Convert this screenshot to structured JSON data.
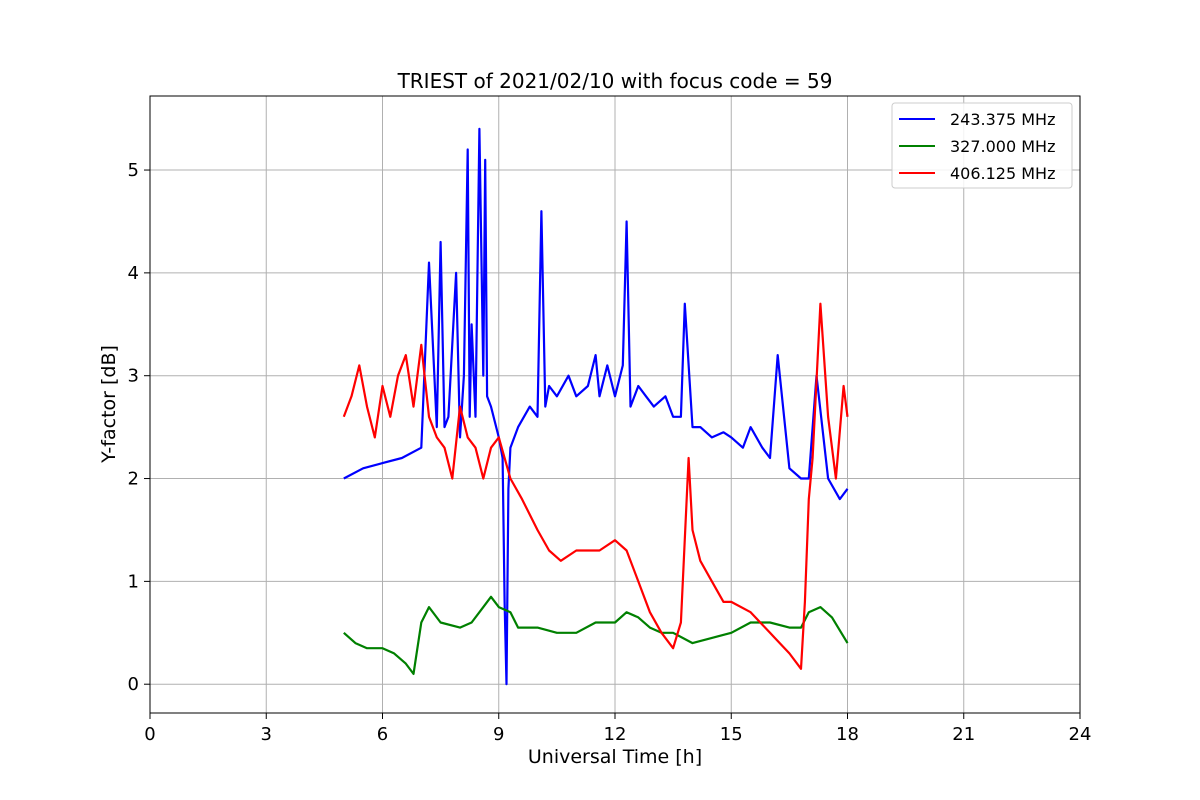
{
  "chart_data": {
    "type": "line",
    "title": "TRIEST of 2021/02/10 with focus code = 59",
    "xlabel": "Universal Time [h]",
    "ylabel": "Y-factor [dB]",
    "xlim": [
      0,
      24
    ],
    "ylim": [
      -0.28,
      5.72
    ],
    "xticks": [
      0,
      3,
      6,
      9,
      12,
      15,
      18,
      21,
      24
    ],
    "yticks": [
      0,
      1,
      2,
      3,
      4,
      5
    ],
    "grid": true,
    "legend_position": "top-right",
    "series": [
      {
        "name": "243.375 MHz",
        "color": "#0000ff",
        "x": [
          5.0,
          5.5,
          6.0,
          6.5,
          7.0,
          7.2,
          7.4,
          7.5,
          7.6,
          7.7,
          7.9,
          8.0,
          8.1,
          8.2,
          8.25,
          8.3,
          8.4,
          8.5,
          8.6,
          8.65,
          8.7,
          8.8,
          9.0,
          9.1,
          9.15,
          9.2,
          9.25,
          9.3,
          9.5,
          9.8,
          10.0,
          10.1,
          10.2,
          10.3,
          10.5,
          10.8,
          11.0,
          11.3,
          11.5,
          11.6,
          11.8,
          12.0,
          12.2,
          12.3,
          12.4,
          12.6,
          12.8,
          13.0,
          13.3,
          13.5,
          13.7,
          13.8,
          14.0,
          14.2,
          14.5,
          14.8,
          15.0,
          15.3,
          15.5,
          15.8,
          16.0,
          16.2,
          16.5,
          16.8,
          17.0,
          17.2,
          17.5,
          17.8,
          18.0
        ],
        "y": [
          2.0,
          2.1,
          2.15,
          2.2,
          2.3,
          4.1,
          2.5,
          4.3,
          2.5,
          2.6,
          4.0,
          2.4,
          3.0,
          5.2,
          2.6,
          3.5,
          2.6,
          5.4,
          3.0,
          5.1,
          2.8,
          2.7,
          2.4,
          2.2,
          0.8,
          0.0,
          1.9,
          2.3,
          2.5,
          2.7,
          2.6,
          4.6,
          2.7,
          2.9,
          2.8,
          3.0,
          2.8,
          2.9,
          3.2,
          2.8,
          3.1,
          2.8,
          3.1,
          4.5,
          2.7,
          2.9,
          2.8,
          2.7,
          2.8,
          2.6,
          2.6,
          3.7,
          2.5,
          2.5,
          2.4,
          2.45,
          2.4,
          2.3,
          2.5,
          2.3,
          2.2,
          3.2,
          2.1,
          2.0,
          2.0,
          3.0,
          2.0,
          1.8,
          1.9
        ]
      },
      {
        "name": "327.000 MHz",
        "color": "#008000",
        "x": [
          5.0,
          5.3,
          5.6,
          6.0,
          6.3,
          6.6,
          6.8,
          7.0,
          7.2,
          7.5,
          8.0,
          8.3,
          8.6,
          8.8,
          9.0,
          9.3,
          9.5,
          10.0,
          10.5,
          11.0,
          11.5,
          12.0,
          12.3,
          12.6,
          12.9,
          13.2,
          13.5,
          14.0,
          14.5,
          15.0,
          15.5,
          16.0,
          16.5,
          16.8,
          17.0,
          17.3,
          17.6,
          18.0
        ],
        "y": [
          0.5,
          0.4,
          0.35,
          0.35,
          0.3,
          0.2,
          0.1,
          0.6,
          0.75,
          0.6,
          0.55,
          0.6,
          0.75,
          0.85,
          0.75,
          0.7,
          0.55,
          0.55,
          0.5,
          0.5,
          0.6,
          0.6,
          0.7,
          0.65,
          0.55,
          0.5,
          0.5,
          0.4,
          0.45,
          0.5,
          0.6,
          0.6,
          0.55,
          0.55,
          0.7,
          0.75,
          0.65,
          0.4
        ]
      },
      {
        "name": "406.125 MHz",
        "color": "#ff0000",
        "x": [
          5.0,
          5.2,
          5.4,
          5.6,
          5.8,
          6.0,
          6.2,
          6.4,
          6.6,
          6.8,
          7.0,
          7.2,
          7.4,
          7.6,
          7.8,
          8.0,
          8.2,
          8.4,
          8.6,
          8.8,
          9.0,
          9.3,
          9.6,
          10.0,
          10.3,
          10.6,
          11.0,
          11.3,
          11.6,
          12.0,
          12.3,
          12.6,
          12.9,
          13.2,
          13.5,
          13.7,
          13.9,
          14.0,
          14.2,
          14.5,
          14.8,
          15.0,
          15.5,
          16.0,
          16.5,
          16.8,
          16.9,
          17.0,
          17.1,
          17.3,
          17.5,
          17.7,
          17.9,
          18.0
        ],
        "y": [
          2.6,
          2.8,
          3.1,
          2.7,
          2.4,
          2.9,
          2.6,
          3.0,
          3.2,
          2.7,
          3.3,
          2.6,
          2.4,
          2.3,
          2.0,
          2.7,
          2.4,
          2.3,
          2.0,
          2.3,
          2.4,
          2.0,
          1.8,
          1.5,
          1.3,
          1.2,
          1.3,
          1.3,
          1.3,
          1.4,
          1.3,
          1.0,
          0.7,
          0.5,
          0.35,
          0.6,
          2.2,
          1.5,
          1.2,
          1.0,
          0.8,
          0.8,
          0.7,
          0.5,
          0.3,
          0.15,
          0.8,
          1.8,
          2.2,
          3.7,
          2.6,
          2.0,
          2.9,
          2.6
        ]
      }
    ]
  }
}
